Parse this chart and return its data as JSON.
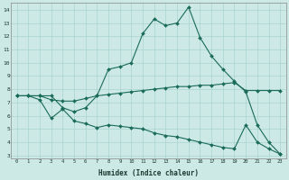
{
  "xlabel": "Humidex (Indice chaleur)",
  "background_color": "#cce9e5",
  "grid_color": "#aad4cf",
  "line_color": "#1a6b5a",
  "x_values": [
    0,
    1,
    2,
    3,
    4,
    5,
    6,
    7,
    8,
    9,
    10,
    11,
    12,
    13,
    14,
    15,
    16,
    17,
    18,
    19,
    20,
    21,
    22,
    23
  ],
  "line_max": [
    7.5,
    7.5,
    7.5,
    7.5,
    6.6,
    6.3,
    6.6,
    7.5,
    9.5,
    9.7,
    10.0,
    12.2,
    13.3,
    12.8,
    13.0,
    14.2,
    11.9,
    10.5,
    9.5,
    8.6,
    7.8,
    5.3,
    4.0,
    3.1
  ],
  "line_mean": [
    7.5,
    7.5,
    7.5,
    7.2,
    7.1,
    7.1,
    7.3,
    7.5,
    7.6,
    7.7,
    7.8,
    7.9,
    8.0,
    8.1,
    8.2,
    8.2,
    8.3,
    8.3,
    8.4,
    8.5,
    7.9,
    7.9,
    7.9,
    7.9
  ],
  "line_min": [
    7.5,
    7.5,
    7.2,
    5.8,
    6.5,
    5.6,
    5.4,
    5.1,
    5.3,
    5.2,
    5.1,
    5.0,
    4.7,
    4.5,
    4.4,
    4.2,
    4.0,
    3.8,
    3.6,
    3.5,
    5.3,
    4.0,
    3.5,
    3.1
  ],
  "ylim": [
    2.8,
    14.5
  ],
  "xlim": [
    -0.5,
    23.5
  ],
  "yticks": [
    3,
    4,
    5,
    6,
    7,
    8,
    9,
    10,
    11,
    12,
    13,
    14
  ],
  "xticks": [
    0,
    1,
    2,
    3,
    4,
    5,
    6,
    7,
    8,
    9,
    10,
    11,
    12,
    13,
    14,
    15,
    16,
    17,
    18,
    19,
    20,
    21,
    22,
    23
  ]
}
